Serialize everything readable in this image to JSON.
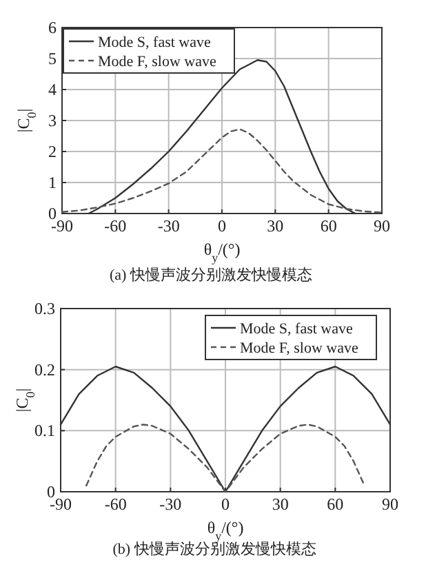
{
  "chart_data": [
    {
      "type": "line",
      "title": "(a) 快慢声波分别激发快慢模态",
      "xlabel": "θ$_{y}$/(°)",
      "ylabel": "|C$_{0}$|",
      "xlim": [
        -90,
        90
      ],
      "xticks": [
        -90,
        -60,
        -30,
        0,
        30,
        60,
        90
      ],
      "ylim": [
        0,
        6
      ],
      "yticks": [
        0,
        1,
        2,
        3,
        4,
        5,
        6
      ],
      "grid": true,
      "legend": "top left",
      "series": [
        {
          "name": "Mode S, fast wave",
          "color": "#333333",
          "line_style": "solid",
          "x": [
            -75,
            -70,
            -60,
            -50,
            -40,
            -30,
            -20,
            -10,
            0,
            10,
            20,
            25,
            30,
            35,
            40,
            45,
            50,
            55,
            60,
            65,
            70,
            75
          ],
          "values": [
            0,
            0.15,
            0.5,
            0.95,
            1.45,
            2.0,
            2.65,
            3.35,
            4.05,
            4.65,
            4.95,
            4.9,
            4.6,
            4.1,
            3.4,
            2.7,
            2.0,
            1.35,
            0.8,
            0.4,
            0.15,
            0
          ]
        },
        {
          "name": "Mode F, slow wave",
          "color": "#555555",
          "line_style": "dashed",
          "x": [
            -90,
            -80,
            -70,
            -60,
            -50,
            -40,
            -30,
            -20,
            -10,
            0,
            5,
            10,
            15,
            20,
            25,
            30,
            35,
            40,
            50,
            60,
            70,
            80,
            90
          ],
          "values": [
            0.05,
            0.1,
            0.2,
            0.32,
            0.5,
            0.72,
            0.97,
            1.35,
            1.9,
            2.45,
            2.65,
            2.72,
            2.6,
            2.35,
            2.05,
            1.7,
            1.35,
            1.05,
            0.6,
            0.3,
            0.15,
            0.07,
            0.03
          ]
        }
      ]
    },
    {
      "type": "line",
      "title": "(b) 快慢声波分别激发慢快模态",
      "xlabel": "θ$_{y}$/(°)",
      "ylabel": "|C$_{0}$|",
      "xlim": [
        -90,
        90
      ],
      "xticks": [
        -90,
        -60,
        -30,
        0,
        30,
        60,
        90
      ],
      "ylim": [
        0,
        0.3
      ],
      "yticks": [
        0,
        0.1,
        0.2,
        0.3
      ],
      "grid": true,
      "legend": "top right",
      "series": [
        {
          "name": "Mode S, fast wave",
          "color": "#333333",
          "line_style": "solid",
          "x": [
            -90,
            -80,
            -70,
            -60,
            -50,
            -40,
            -30,
            -20,
            -10,
            0,
            10,
            20,
            30,
            40,
            50,
            60,
            70,
            80,
            90
          ],
          "values": [
            0.11,
            0.16,
            0.19,
            0.205,
            0.195,
            0.17,
            0.14,
            0.1,
            0.05,
            0,
            0.05,
            0.1,
            0.14,
            0.17,
            0.195,
            0.205,
            0.19,
            0.16,
            0.11
          ]
        },
        {
          "name": "Mode F, slow wave",
          "color": "#555555",
          "line_style": "dashed",
          "x": [
            -76,
            -70,
            -65,
            -60,
            -50,
            -45,
            -40,
            -30,
            -20,
            -10,
            0,
            10,
            20,
            30,
            40,
            45,
            50,
            60,
            65,
            70,
            76
          ],
          "values": [
            0.01,
            0.05,
            0.075,
            0.09,
            0.107,
            0.11,
            0.108,
            0.095,
            0.07,
            0.04,
            0,
            0.04,
            0.07,
            0.095,
            0.108,
            0.11,
            0.107,
            0.09,
            0.075,
            0.05,
            0.01
          ]
        }
      ]
    }
  ]
}
